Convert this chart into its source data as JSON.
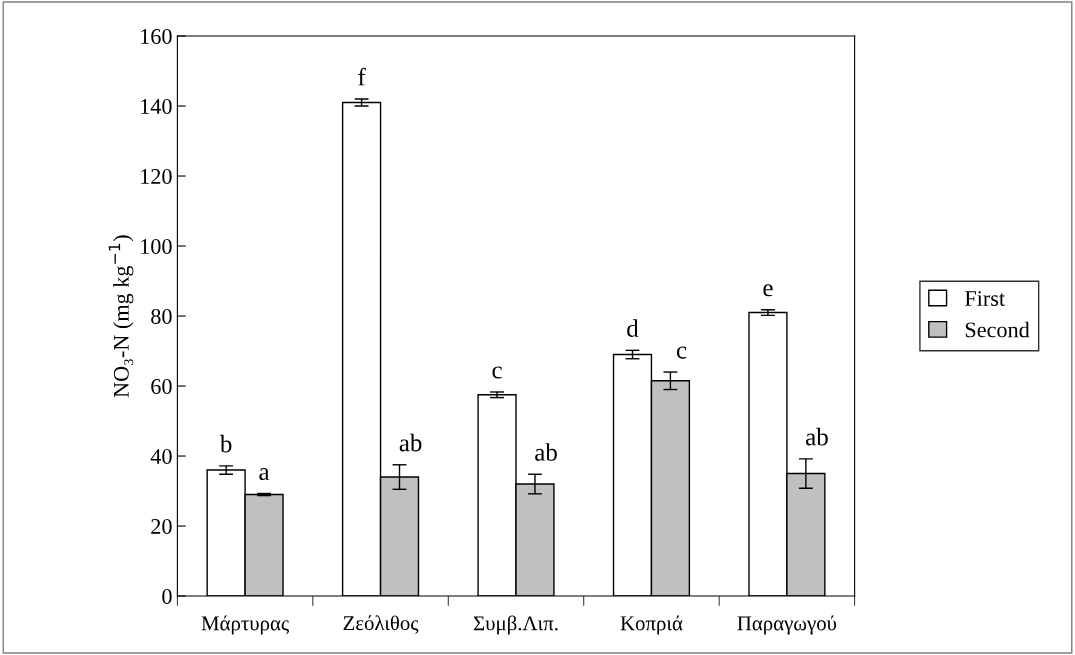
{
  "chart_data": {
    "type": "bar",
    "ylabel": "NO₃-N (mg kg$^{−1}$)",
    "categories": [
      "Μάρτυρας",
      "Ζεόλιθος",
      "Συμβ.Λιπ.",
      "Κοπριά",
      "Παραγωγού"
    ],
    "series": [
      {
        "name": "First",
        "color": "#ffffff",
        "values": [
          36,
          141,
          57.5,
          69,
          81
        ],
        "errors": [
          1.2,
          1,
          0.8,
          1.2,
          0.8
        ]
      },
      {
        "name": "Second",
        "color": "#c0c0c0",
        "values": [
          29,
          34,
          32,
          61.5,
          35
        ],
        "errors": [
          0.3,
          3.5,
          2.8,
          2.5,
          4.2
        ]
      }
    ],
    "ylim": [
      0,
      160
    ],
    "yticks": [
      0,
      20,
      40,
      60,
      80,
      100,
      120,
      140,
      160
    ],
    "grid": false,
    "legend": "right",
    "annotations": [
      {
        "text": "b",
        "x": "Μάρτυρας",
        "y": 36
      },
      {
        "text": "a",
        "x": "Μάρτυρας",
        "y": 29
      },
      {
        "text": "f",
        "x": "Ζεόλιθος",
        "y": 141
      },
      {
        "text": "ab",
        "x": "Ζεόλιθος",
        "y": 34
      },
      {
        "text": "c",
        "x": "Συμβ.Λιπ.",
        "y": 57.5
      },
      {
        "text": "ab",
        "x": "Συμβ.Λιπ.",
        "y": 32
      },
      {
        "text": "d",
        "x": "Κοπριά",
        "y": 69
      },
      {
        "text": "c",
        "x": "Κοπριά",
        "y": 61.5
      },
      {
        "text": "e",
        "x": "Παραγωγού",
        "y": 81
      },
      {
        "text": "ab",
        "x": "Παραγωγού",
        "y": 35
      }
    ]
  }
}
